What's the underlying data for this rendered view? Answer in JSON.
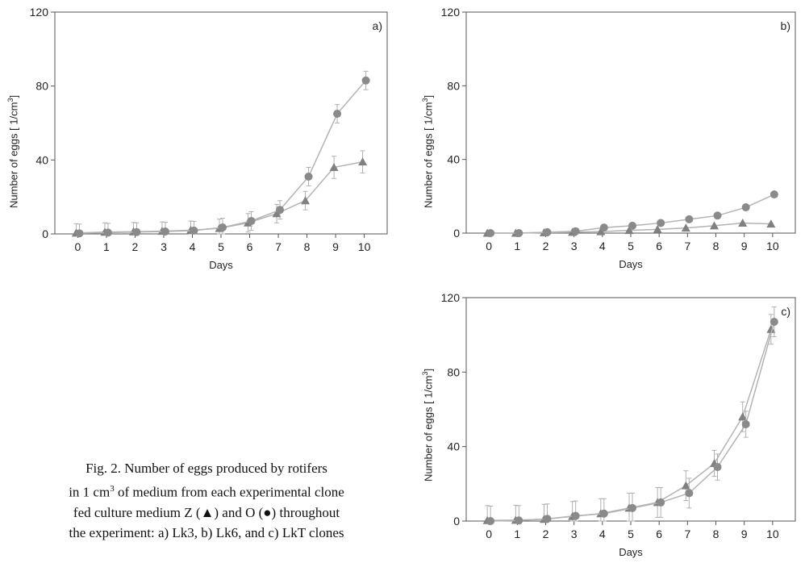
{
  "caption": {
    "line1": "Fig. 2. Number of eggs produced by rotifers",
    "line2_pre": "in 1 cm",
    "line2_sup": "3",
    "line2_post": " of medium from each experimental clone",
    "line3": "fed culture medium Z (▲) and O (●) throughout",
    "line4": "the experiment: a) Lk3, b) Lk6, and c) LkT clones"
  },
  "y_label": {
    "pre": "Number of  eggs [ 1/cm",
    "sup": "3",
    "post": "]"
  },
  "colors": {
    "triangle_series": "#808080",
    "circle_series": "#8a8a8a",
    "line": "#b3b3b3",
    "error_bar": "#b0b0b0",
    "axis": "#555555"
  },
  "chart_data": [
    {
      "type": "line",
      "panel_label": "a)",
      "xlabel": "Days",
      "ylabel": "Number of  eggs [ 1/cm3]",
      "x": [
        0,
        1,
        2,
        3,
        4,
        5,
        6,
        7,
        8,
        9,
        10
      ],
      "xlim": [
        -0.8,
        10.8
      ],
      "ylim": [
        0,
        120
      ],
      "yticks": [
        0,
        40,
        80,
        120
      ],
      "series": [
        {
          "marker": "triangle",
          "values": [
            0.5,
            1,
            1.2,
            1.5,
            2,
            3,
            6,
            11,
            18,
            36,
            39
          ],
          "errors": [
            5,
            5,
            5,
            5,
            5,
            5,
            5,
            5,
            5,
            6,
            6
          ]
        },
        {
          "marker": "circle",
          "values": [
            0.3,
            0.7,
            1,
            1.3,
            1.8,
            3.5,
            7,
            13,
            31,
            65,
            83
          ],
          "errors": [
            5,
            5,
            5,
            5,
            5,
            5,
            5,
            5,
            5,
            5,
            5
          ]
        }
      ]
    },
    {
      "type": "line",
      "panel_label": "b)",
      "xlabel": "Days",
      "ylabel": "Number of  eggs [ 1/cm3]",
      "x": [
        0,
        1,
        2,
        3,
        4,
        5,
        6,
        7,
        8,
        9,
        10
      ],
      "xlim": [
        -0.8,
        10.8
      ],
      "ylim": [
        0,
        120
      ],
      "yticks": [
        0,
        40,
        80,
        120
      ],
      "series": [
        {
          "marker": "triangle",
          "values": [
            0,
            0,
            0.3,
            0.5,
            0.8,
            1.5,
            2,
            2.8,
            4,
            5.5,
            5
          ],
          "errors": []
        },
        {
          "marker": "circle",
          "values": [
            0,
            0,
            0.5,
            1,
            3,
            4,
            5.5,
            7.5,
            9.5,
            14,
            21
          ],
          "errors": []
        }
      ]
    },
    {
      "type": "line",
      "panel_label": "c)",
      "xlabel": "Days",
      "ylabel": "Number of  eggs [ 1/cm3]",
      "x": [
        0,
        1,
        2,
        3,
        4,
        5,
        6,
        7,
        8,
        9,
        10
      ],
      "xlim": [
        -0.8,
        10.8
      ],
      "ylim": [
        0,
        120
      ],
      "yticks": [
        0,
        40,
        80,
        120
      ],
      "series": [
        {
          "marker": "triangle",
          "values": [
            0.3,
            0.5,
            1,
            2.5,
            4,
            7,
            10,
            19,
            31,
            56,
            103
          ],
          "errors": [
            8,
            8,
            8,
            8,
            8,
            8,
            8,
            8,
            7,
            8,
            8
          ]
        },
        {
          "marker": "circle",
          "values": [
            0,
            0.3,
            1.2,
            2.8,
            4,
            7,
            10,
            15,
            29,
            52,
            107
          ],
          "errors": [
            8,
            8,
            8,
            8,
            8,
            8,
            8,
            8,
            7,
            7,
            8
          ]
        }
      ]
    }
  ]
}
